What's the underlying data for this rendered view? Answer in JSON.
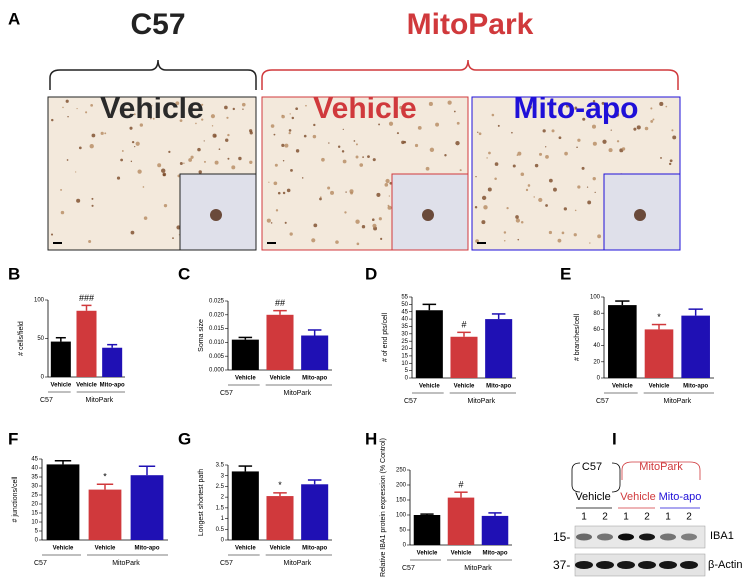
{
  "panel_a": {
    "label": "A",
    "groups": [
      "C57",
      "MitoPark"
    ],
    "images": [
      "Vehicle",
      "Vehicle",
      "Mito-apo"
    ]
  },
  "chart_data": [
    {
      "type": "bar",
      "panel": "B",
      "ylabel": "# cells/field",
      "categories": [
        "Vehicle",
        "Vehicle",
        "Mito-apo"
      ],
      "group_labels": [
        "C57",
        "MitoPark"
      ],
      "values": [
        46,
        86,
        38
      ],
      "errors": [
        5,
        7,
        4
      ],
      "annotations": [
        null,
        "###",
        null
      ],
      "colors": [
        "#000000",
        "#d0393c",
        "#1f10b4"
      ],
      "ylim": [
        0,
        100
      ],
      "yticks": [
        0,
        50,
        100
      ]
    },
    {
      "type": "bar",
      "panel": "C",
      "ylabel": "Soma size",
      "categories": [
        "Vehicle",
        "Vehicle",
        "Mito-apo"
      ],
      "group_labels": [
        "C57",
        "MitoPark"
      ],
      "values": [
        0.011,
        0.02,
        0.0125
      ],
      "errors": [
        0.0008,
        0.0015,
        0.002
      ],
      "annotations": [
        null,
        "##",
        null
      ],
      "colors": [
        "#000000",
        "#d0393c",
        "#1f10b4"
      ],
      "ylim": [
        0,
        0.025
      ],
      "yticks": [
        {
          "value": 0,
          "label": "0.000"
        },
        {
          "value": 0.005,
          "label": "0.005"
        },
        {
          "value": 0.01,
          "label": "0.010"
        },
        {
          "value": 0.015,
          "label": "0.015"
        },
        {
          "value": 0.02,
          "label": "0.020"
        },
        {
          "value": 0.025,
          "label": "0.025"
        }
      ]
    },
    {
      "type": "bar",
      "panel": "D",
      "ylabel": "# of end pts/cell",
      "categories": [
        "Vehicle",
        "Vehicle",
        "Mito-apo"
      ],
      "group_labels": [
        "C57",
        "MitoPark"
      ],
      "values": [
        46,
        28,
        40
      ],
      "errors": [
        4,
        3,
        3.5
      ],
      "annotations": [
        null,
        "#",
        null
      ],
      "colors": [
        "#000000",
        "#d0393c",
        "#1f10b4"
      ],
      "ylim": [
        0,
        55
      ],
      "yticks": [
        0,
        5,
        10,
        15,
        20,
        25,
        30,
        35,
        40,
        45,
        50,
        55
      ]
    },
    {
      "type": "bar",
      "panel": "E",
      "ylabel": "# branches/cell",
      "categories": [
        "Vehicle",
        "Vehicle",
        "Mito-apo"
      ],
      "group_labels": [
        "C57",
        "MitoPark"
      ],
      "values": [
        90,
        60,
        77
      ],
      "errors": [
        5,
        6,
        8
      ],
      "annotations": [
        null,
        "*",
        null
      ],
      "colors": [
        "#000000",
        "#d0393c",
        "#1f10b4"
      ],
      "ylim": [
        0,
        100
      ],
      "yticks": [
        0,
        20,
        40,
        60,
        80,
        100
      ]
    },
    {
      "type": "bar",
      "panel": "F",
      "ylabel": "# junctions/cell",
      "categories": [
        "Vehicle",
        "Vehicle",
        "Mito-apo"
      ],
      "group_labels": [
        "C57",
        "MitoPark"
      ],
      "values": [
        42,
        28,
        36
      ],
      "errors": [
        2,
        3,
        5
      ],
      "annotations": [
        null,
        "*",
        null
      ],
      "colors": [
        "#000000",
        "#d0393c",
        "#1f10b4"
      ],
      "ylim": [
        0,
        45
      ],
      "yticks": [
        0,
        5,
        10,
        15,
        20,
        25,
        30,
        35,
        40,
        45
      ]
    },
    {
      "type": "bar",
      "panel": "G",
      "ylabel": "Longest shortest path",
      "categories": [
        "Vehicle",
        "Vehicle",
        "Mito-apo"
      ],
      "group_labels": [
        "C57",
        "MitoPark"
      ],
      "values": [
        3.2,
        2.05,
        2.6
      ],
      "errors": [
        0.25,
        0.15,
        0.2
      ],
      "annotations": [
        null,
        "*",
        null
      ],
      "colors": [
        "#000000",
        "#d0393c",
        "#1f10b4"
      ],
      "ylim": [
        0,
        3.5
      ],
      "yticks": [
        0,
        0.5,
        1,
        1.5,
        2,
        2.5,
        3,
        3.5
      ]
    },
    {
      "type": "bar",
      "panel": "H",
      "ylabel": "Relative IBA1 protein expression (% Control)",
      "categories": [
        "Vehicle",
        "Vehicle",
        "Mito-apo"
      ],
      "group_labels": [
        "C57",
        "MitoPark"
      ],
      "values": [
        100,
        158,
        97
      ],
      "errors": [
        3,
        18,
        10
      ],
      "annotations": [
        null,
        "#",
        null
      ],
      "colors": [
        "#000000",
        "#d0393c",
        "#1f10b4"
      ],
      "ylim": [
        0,
        250
      ],
      "yticks": [
        0,
        50,
        100,
        150,
        200,
        250
      ]
    }
  ],
  "panel_i": {
    "label": "I",
    "groups": [
      "C57",
      "MitoPark"
    ],
    "treatments": [
      "Vehicle",
      "Vehicle",
      "Mito-apo"
    ],
    "lanes": [
      "1",
      "2",
      "1",
      "2",
      "1",
      "2"
    ],
    "markers": [
      "15-",
      "37-"
    ],
    "proteins": [
      "IBA1",
      "β-Actin"
    ]
  }
}
